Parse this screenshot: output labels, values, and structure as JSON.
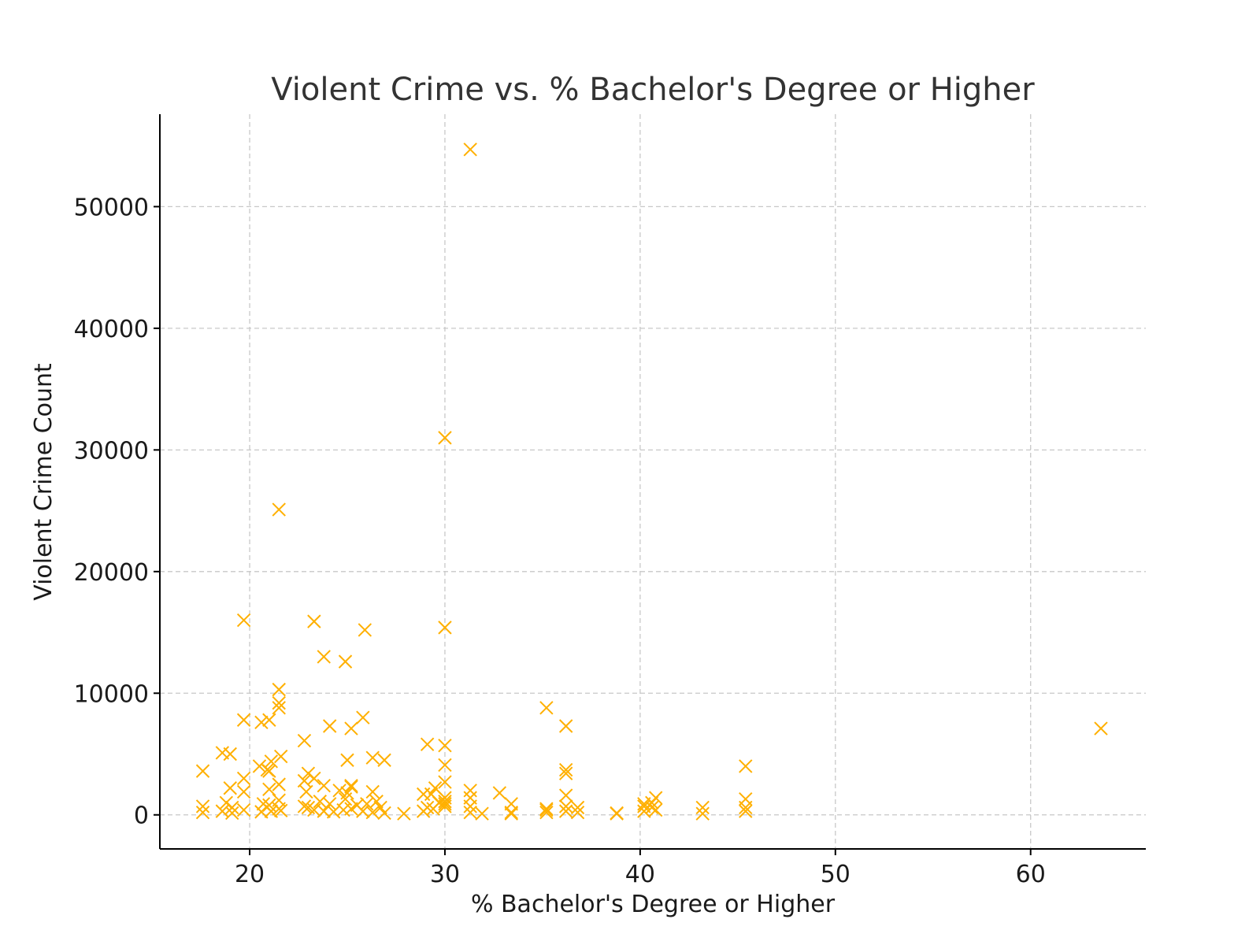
{
  "chart_data": {
    "type": "scatter",
    "title": "Violent Crime vs. % Bachelor's Degree or Higher",
    "xlabel": "% Bachelor's Degree or Higher",
    "ylabel": "Violent Crime Count",
    "xlim": [
      15.4,
      65.9
    ],
    "ylim": [
      -2800,
      57600
    ],
    "xticks": [
      20,
      30,
      40,
      50,
      60
    ],
    "yticks": [
      0,
      10000,
      20000,
      30000,
      40000,
      50000
    ],
    "grid": true,
    "marker": "x",
    "color": "#FFB000",
    "series": [
      {
        "x": [
          31.3,
          30.0,
          21.5,
          19.7,
          23.3,
          30.0,
          25.9,
          23.8,
          24.9,
          21.5,
          21.5,
          21.5,
          35.2,
          25.8,
          19.7,
          21.0,
          20.6,
          24.1,
          25.2,
          36.2,
          63.6,
          29.1,
          30.0,
          22.8,
          18.6,
          19.0,
          26.3,
          26.9,
          21.6,
          25.0,
          20.5,
          20.9,
          45.4,
          30.0,
          36.2,
          21.1,
          36.2,
          17.6,
          19.7,
          23.0,
          23.3,
          21.0,
          32.8,
          26.3,
          25.2,
          40.8,
          31.3,
          22.8,
          19.0,
          25.2,
          29.5,
          30.0,
          45.4,
          36.2,
          40.2,
          43.2,
          21.5,
          33.4,
          36.8,
          24.6,
          21.0,
          28.9,
          31.3,
          19.7,
          25.0,
          23.8,
          29.3,
          40.6,
          22.9,
          35.2,
          30.0,
          26.5,
          17.6,
          18.6,
          19.1,
          19.7,
          20.6,
          21.1,
          21.5,
          21.6,
          23.0,
          23.3,
          23.8,
          24.3,
          24.8,
          25.2,
          25.8,
          26.3,
          26.9,
          27.9,
          28.9,
          29.4,
          30.0,
          31.3,
          31.9,
          33.4,
          35.2,
          36.2,
          36.8,
          38.8,
          40.2,
          40.8,
          43.2,
          45.4,
          17.6,
          19.1,
          21.0,
          22.8,
          24.1,
          25.5,
          26.7,
          29.1,
          30.0,
          31.3,
          33.4,
          36.2,
          38.8,
          40.6,
          45.4,
          18.8,
          20.7,
          21.5,
          23.6,
          24.9,
          26.0,
          29.7,
          30.0,
          35.2,
          40.2
        ],
        "y": [
          54700,
          31000,
          25100,
          16000,
          15900,
          15400,
          15200,
          13000,
          12600,
          10300,
          9200,
          8800,
          8800,
          8000,
          7800,
          7800,
          7600,
          7300,
          7100,
          7300,
          7100,
          5800,
          5700,
          6100,
          5100,
          5000,
          4700,
          4500,
          4800,
          4500,
          4000,
          3700,
          4000,
          4100,
          3700,
          4400,
          3400,
          3600,
          3000,
          3400,
          3000,
          3600,
          1800,
          1900,
          2400,
          1400,
          2000,
          2800,
          2200,
          2300,
          2200,
          2700,
          1300,
          1600,
          900,
          600,
          2500,
          900,
          600,
          2000,
          2100,
          1700,
          1400,
          1900,
          1800,
          2400,
          1700,
          1000,
          1900,
          500,
          1400,
          1100,
          200,
          300,
          150,
          400,
          250,
          300,
          500,
          350,
          600,
          400,
          300,
          250,
          400,
          500,
          300,
          200,
          150,
          100,
          300,
          500,
          700,
          200,
          100,
          100,
          200,
          300,
          200,
          100,
          300,
          400,
          100,
          300,
          700,
          600,
          800,
          700,
          900,
          800,
          600,
          600,
          900,
          700,
          200,
          700,
          150,
          600,
          600,
          1000,
          900,
          1200,
          1100,
          1300,
          900,
          1000,
          1100,
          400,
          700
        ]
      }
    ]
  }
}
